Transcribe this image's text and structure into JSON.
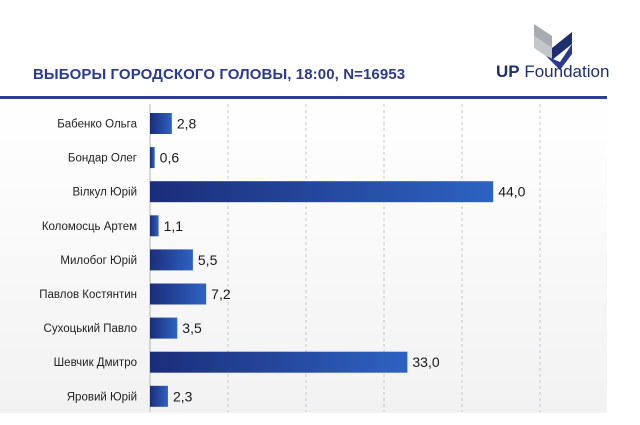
{
  "header": {
    "title": "ВЫБОРЫ ГОРОДСКОГО ГОЛОВЫ, 18:00, N=16953",
    "logo_bold": "UP",
    "logo_rest": " Foundation"
  },
  "colors": {
    "bar_dark": "#1b2d7a",
    "bar_light": "#2e63c2",
    "title": "#2b3a8f",
    "rule": "#2e3d97",
    "logo_grey": "#a7abb2",
    "logo_navy": "#1f2f6e"
  },
  "chart_data": {
    "type": "bar",
    "orientation": "horizontal",
    "title": "ВЫБОРЫ ГОРОДСКОГО ГОЛОВЫ, 18:00, N=16953",
    "categories": [
      "Бабенко Ольга",
      "Бондар Олег",
      "Вілкул Юрій",
      "Коломосць Артем",
      "Милобог Юрій",
      "Павлов Костянтин",
      "Сухоцький Павло",
      "Шевчик Дмитро",
      "Яровий Юрій"
    ],
    "values": [
      2.8,
      0.6,
      44.0,
      1.1,
      5.5,
      7.2,
      3.5,
      33.0,
      2.3
    ],
    "value_labels": [
      "2,8",
      "0,6",
      "44,0",
      "1,1",
      "5,5",
      "7,2",
      "3,5",
      "33,0",
      "2,3"
    ],
    "xlim": [
      0,
      50
    ],
    "grid": "vertical dashed",
    "legend": "none"
  }
}
